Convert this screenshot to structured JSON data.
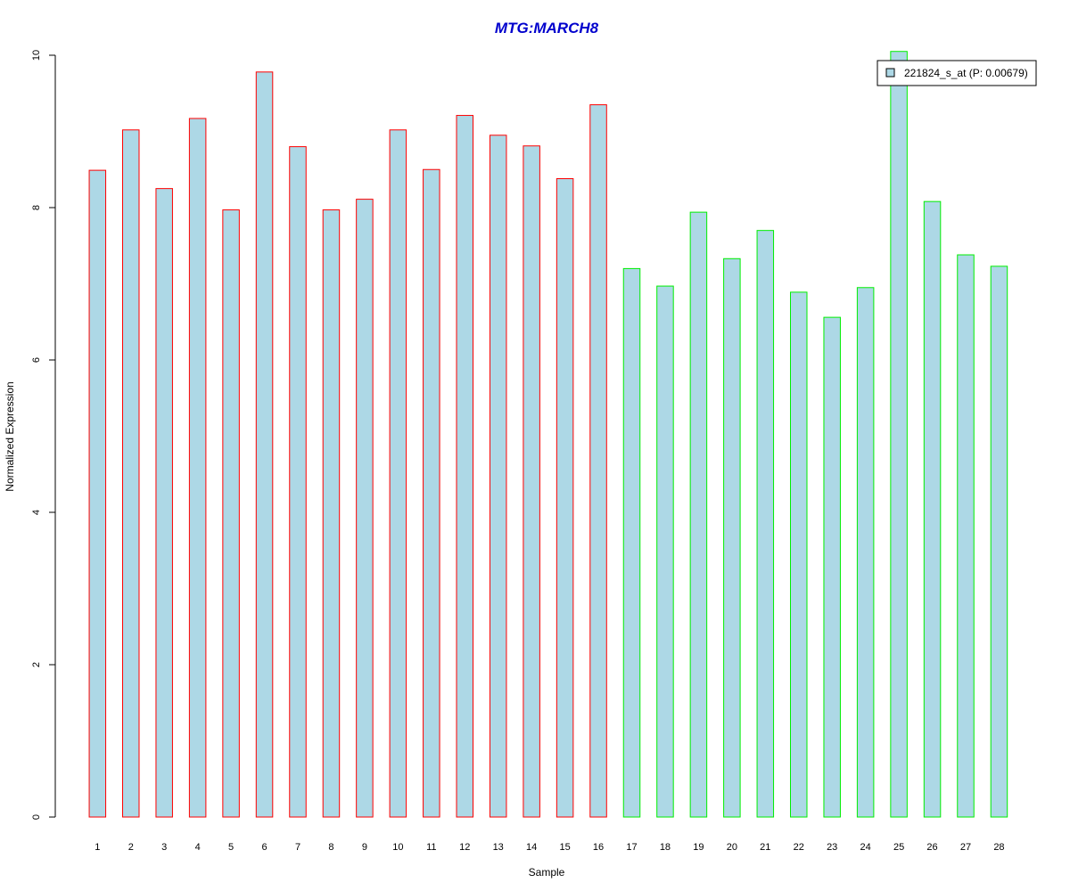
{
  "chart_data": {
    "type": "bar",
    "title": "MTG:MARCH8",
    "xlabel": "Sample",
    "ylabel": "Normalized Expression",
    "categories": [
      "1",
      "2",
      "3",
      "4",
      "5",
      "6",
      "7",
      "8",
      "9",
      "10",
      "11",
      "12",
      "13",
      "14",
      "15",
      "16",
      "17",
      "18",
      "19",
      "20",
      "21",
      "22",
      "23",
      "24",
      "25",
      "26",
      "27",
      "28"
    ],
    "values": [
      8.49,
      9.02,
      8.25,
      9.17,
      7.97,
      9.78,
      8.8,
      7.97,
      8.11,
      9.02,
      8.5,
      9.21,
      8.95,
      8.81,
      8.38,
      9.35,
      7.2,
      6.97,
      7.94,
      7.33,
      7.7,
      6.89,
      6.56,
      6.95,
      10.05,
      8.08,
      7.38,
      7.23
    ],
    "group_edge_colors": [
      "#ff0000",
      "#ff0000",
      "#ff0000",
      "#ff0000",
      "#ff0000",
      "#ff0000",
      "#ff0000",
      "#ff0000",
      "#ff0000",
      "#ff0000",
      "#ff0000",
      "#ff0000",
      "#ff0000",
      "#ff0000",
      "#ff0000",
      "#ff0000",
      "#00ee00",
      "#00ee00",
      "#00ee00",
      "#00ee00",
      "#00ee00",
      "#00ee00",
      "#00ee00",
      "#00ee00",
      "#00ee00",
      "#00ee00",
      "#00ee00",
      "#00ee00"
    ],
    "bar_fill": "#add8e6",
    "title_color": "#0000cd",
    "yticks": [
      "0",
      "2",
      "4",
      "6",
      "8",
      "10"
    ],
    "ylim": [
      0,
      10
    ],
    "legend": {
      "placement": "top-right",
      "entries": [
        {
          "label": "221824_s_at (P: 0.00679)",
          "color": "#add8e6"
        }
      ]
    },
    "grid": false
  }
}
